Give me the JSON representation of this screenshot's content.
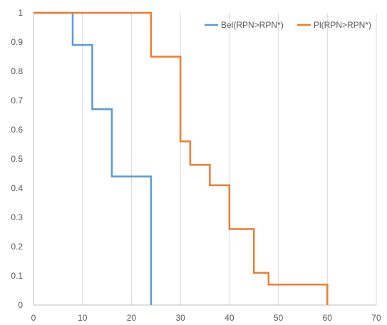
{
  "chart_data": {
    "type": "line",
    "step": true,
    "title": "",
    "xlabel": "",
    "ylabel": "",
    "xlim": [
      0,
      70
    ],
    "ylim": [
      0,
      1
    ],
    "x_ticks": [
      "0",
      "10",
      "20",
      "30",
      "40",
      "50",
      "60",
      "70"
    ],
    "y_ticks": [
      "0",
      "0.1",
      "0.2",
      "0.3",
      "0.4",
      "0.5",
      "0.6",
      "0.7",
      "0.8",
      "0.9",
      "1"
    ],
    "grid": "vertical",
    "legend_position": "top-right",
    "series": [
      {
        "name": "Bel(RPN>RPN*)",
        "color": "#5B9BD5",
        "points": [
          [
            0,
            1
          ],
          [
            8,
            1
          ],
          [
            8,
            0.89
          ],
          [
            12,
            0.89
          ],
          [
            12,
            0.67
          ],
          [
            16,
            0.67
          ],
          [
            16,
            0.44
          ],
          [
            24,
            0.44
          ],
          [
            24,
            0
          ]
        ]
      },
      {
        "name": "Pl(RPN>RPN*)",
        "color": "#ED7D31",
        "points": [
          [
            0,
            1
          ],
          [
            24,
            1
          ],
          [
            24,
            0.85
          ],
          [
            30,
            0.85
          ],
          [
            30,
            0.56
          ],
          [
            32,
            0.56
          ],
          [
            32,
            0.48
          ],
          [
            36,
            0.48
          ],
          [
            36,
            0.41
          ],
          [
            40,
            0.41
          ],
          [
            40,
            0.26
          ],
          [
            45,
            0.26
          ],
          [
            45,
            0.11
          ],
          [
            48,
            0.11
          ],
          [
            48,
            0.07
          ],
          [
            60,
            0.07
          ],
          [
            60,
            0
          ]
        ]
      }
    ]
  }
}
